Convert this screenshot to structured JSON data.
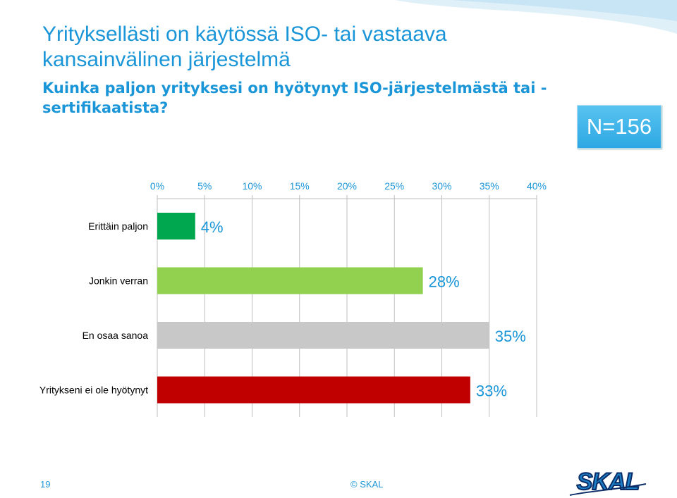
{
  "title": "Yrityksellästi on käytössä ISO- tai vastaava kansainvälinen järjestelmä",
  "subtitle": "Kuinka paljon yrityksesi on hyötynyt ISO-järjestelmästä tai -sertifikaatista?",
  "sample_size": "N=156",
  "footer": {
    "page_number": "19",
    "copyright": "© SKAL"
  },
  "logo": {
    "text": "SKAL",
    "colors": [
      "#1a7fc4",
      "#0b2c66"
    ]
  },
  "colors": {
    "accent": "#1a96d8",
    "gridline": "#bfbfbf"
  },
  "chart_data": {
    "type": "bar",
    "orientation": "horizontal",
    "xaxis_position": "top",
    "categories": [
      "Erittäin paljon",
      "Jonkin verran",
      "En osaa sanoa",
      "Yritykseni ei ole hyötynyt"
    ],
    "values": [
      4,
      28,
      35,
      33
    ],
    "data_labels": [
      "4%",
      "28%",
      "35%",
      "33%"
    ],
    "bar_colors": [
      "#00a74f",
      "#92d050",
      "#c8c8c8",
      "#c00000"
    ],
    "xlim": [
      0,
      40
    ],
    "xticks": [
      0,
      5,
      10,
      15,
      20,
      25,
      30,
      35,
      40
    ],
    "xtick_labels": [
      "0%",
      "5%",
      "10%",
      "15%",
      "20%",
      "25%",
      "30%",
      "35%",
      "40%"
    ],
    "grid": true,
    "legend": "none"
  }
}
